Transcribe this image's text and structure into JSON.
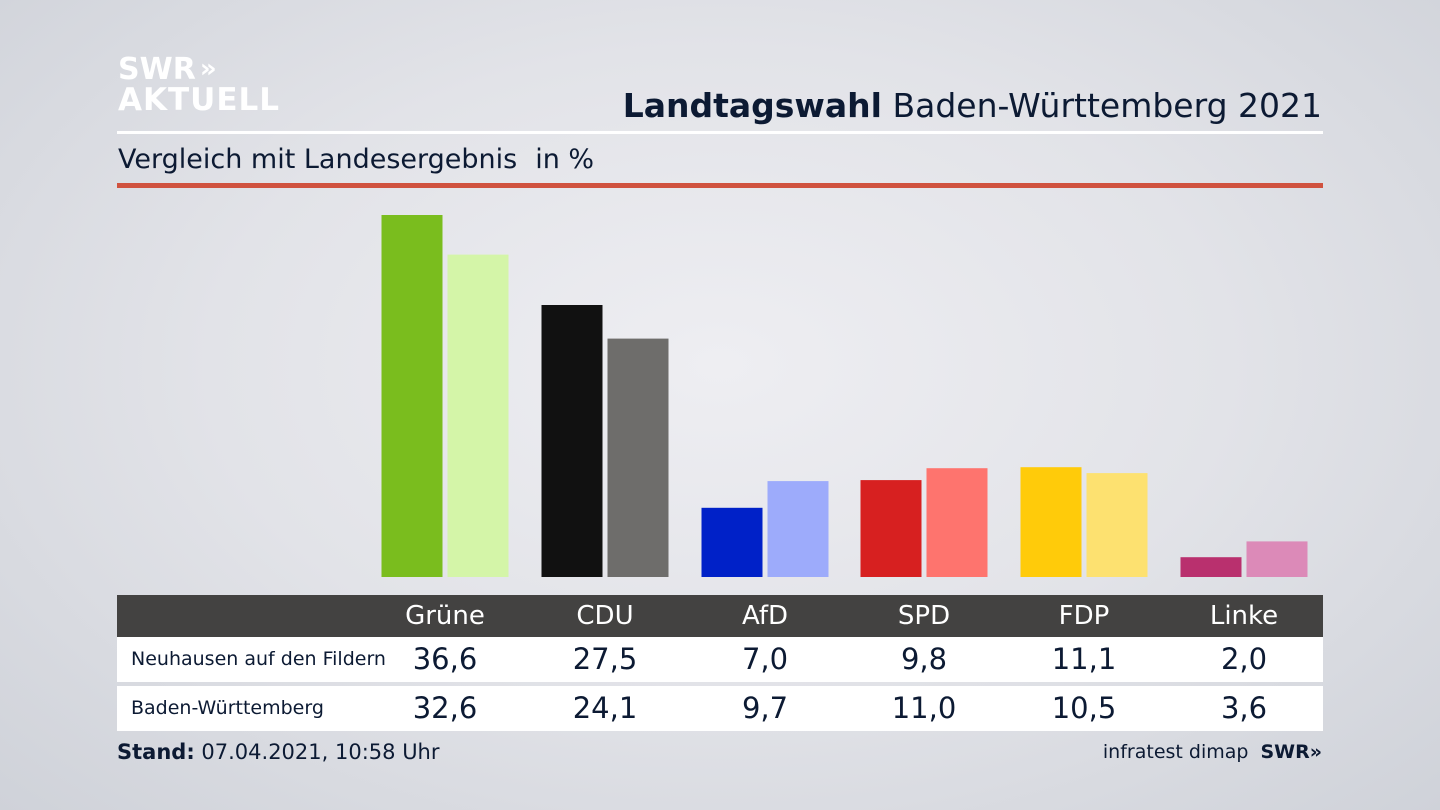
{
  "logo": {
    "line1": "SWR",
    "line2": "AKTUELL",
    "chevrons": "»"
  },
  "header": {
    "title_bold": "Landtagswahl",
    "title_rest": "Baden-Württemberg 2021",
    "subtitle": "Vergleich mit Landesergebnis",
    "unit": "in %"
  },
  "colors": {
    "divider_red": "#d0523f",
    "table_header": "#434241"
  },
  "chart_data": {
    "type": "bar",
    "categories": [
      "Grüne",
      "CDU",
      "AfD",
      "SPD",
      "FDP",
      "Linke"
    ],
    "series": [
      {
        "name": "Neuhausen auf den Fildern",
        "values": [
          36.6,
          27.5,
          7.0,
          9.8,
          11.1,
          2.0
        ],
        "colors": [
          "#7abd1e",
          "#111111",
          "#0021c8",
          "#d72020",
          "#ffcb0a",
          "#b9306e"
        ]
      },
      {
        "name": "Baden-Württemberg",
        "values": [
          32.6,
          24.1,
          9.7,
          11.0,
          10.5,
          3.6
        ],
        "colors": [
          "#d4f5a8",
          "#6e6d6b",
          "#9dabfb",
          "#fe746e",
          "#fde170",
          "#dc8ab8"
        ]
      }
    ],
    "ylim": [
      0,
      36.6
    ],
    "grid": false
  },
  "table": {
    "headers": [
      "Grüne",
      "CDU",
      "AfD",
      "SPD",
      "FDP",
      "Linke"
    ],
    "rows": [
      {
        "label": "Neuhausen auf den Fildern",
        "values": [
          "36,6",
          "27,5",
          "7,0",
          "9,8",
          "11,1",
          "2,0"
        ]
      },
      {
        "label": "Baden-Württemberg",
        "values": [
          "32,6",
          "24,1",
          "9,7",
          "11,0",
          "10,5",
          "3,6"
        ]
      }
    ]
  },
  "footer": {
    "stand_label": "Stand:",
    "stand_value": "07.04.2021, 10:58 Uhr",
    "source": "infratest dimap",
    "brand": "SWR»"
  }
}
